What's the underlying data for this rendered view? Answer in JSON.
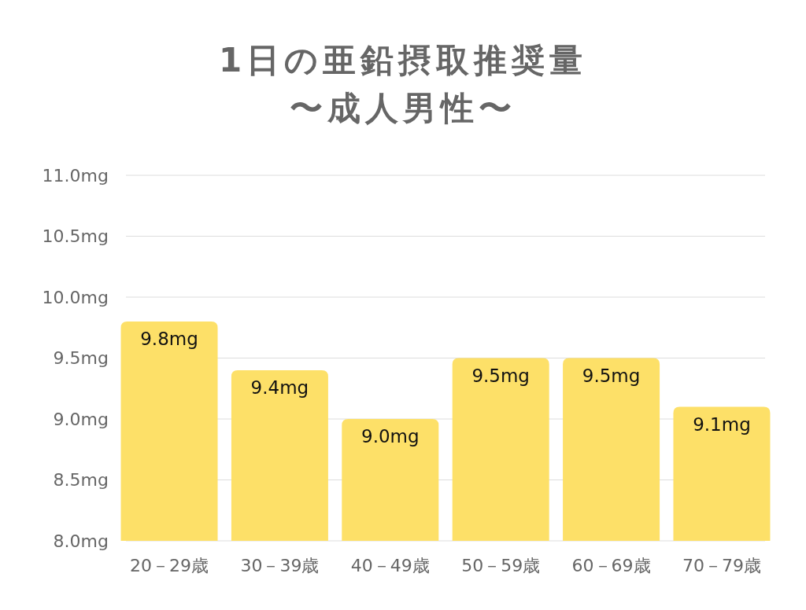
{
  "chart_data": {
    "type": "bar",
    "title": "1日の亜鉛摂取推奨量",
    "subtitle": "〜成人男性〜",
    "categories": [
      "20－29歳",
      "30－39歳",
      "40－49歳",
      "50－59歳",
      "60－69歳",
      "70－79歳"
    ],
    "values": [
      9.8,
      9.4,
      9.0,
      9.5,
      9.5,
      9.1
    ],
    "color": "#fde068",
    "value_labels": [
      "9.8mg",
      "9.4mg",
      "9.0mg",
      "9.5mg",
      "9.5mg",
      "9.1mg"
    ],
    "ylim": [
      8,
      11
    ],
    "yticks": [
      {
        "value": 8,
        "label": "8.0mg"
      },
      {
        "value": 8.5,
        "label": "8.5mg"
      },
      {
        "value": 9,
        "label": "9.0mg"
      },
      {
        "value": 9.5,
        "label": "9.5mg"
      },
      {
        "value": 10,
        "label": "10.0mg"
      },
      {
        "value": 10.5,
        "label": "10.5mg"
      },
      {
        "value": 11,
        "label": "11.0mg"
      }
    ],
    "grid": "y"
  }
}
